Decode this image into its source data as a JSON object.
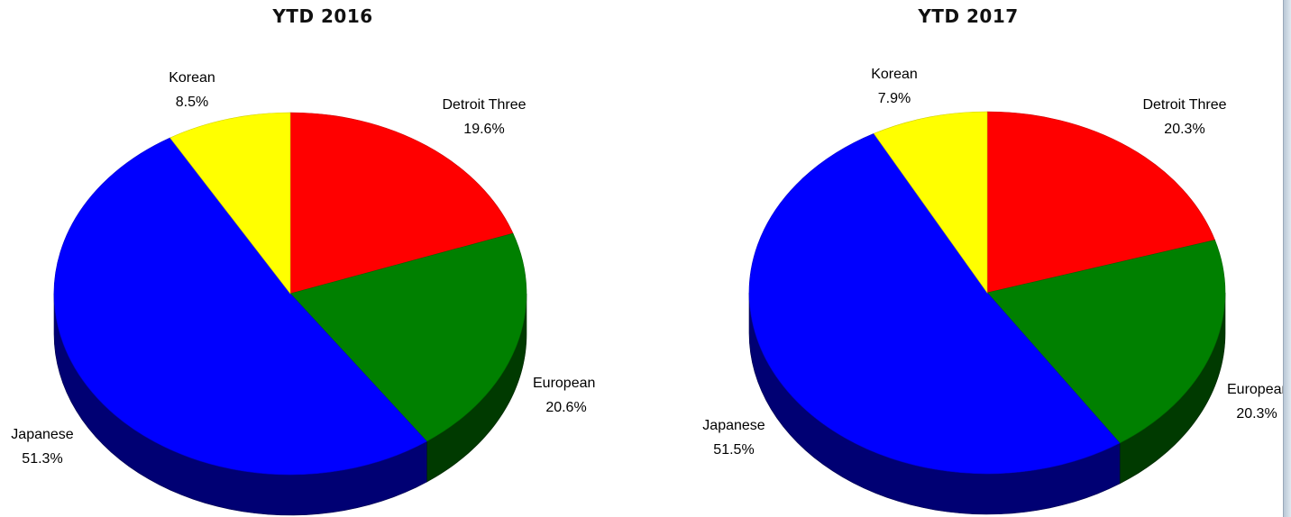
{
  "chart_data": [
    {
      "type": "pie",
      "title": "YTD 2016",
      "slices": [
        {
          "label": "Detroit Three",
          "value": 19.6,
          "display": "19.6%",
          "color": "#ff0000"
        },
        {
          "label": "European",
          "value": 20.6,
          "display": "20.6%",
          "color": "#008000"
        },
        {
          "label": "Japanese",
          "value": 51.3,
          "display": "51.3%",
          "color": "#0000ff"
        },
        {
          "label": "Korean",
          "value": 8.5,
          "display": "8.5%",
          "color": "#ffff00"
        }
      ]
    },
    {
      "type": "pie",
      "title": "YTD 2017",
      "slices": [
        {
          "label": "Detroit Three",
          "value": 20.3,
          "display": "20.3%",
          "color": "#ff0000"
        },
        {
          "label": "European",
          "value": 20.3,
          "display": "20.3%",
          "color": "#008000"
        },
        {
          "label": "Japanese",
          "value": 51.5,
          "display": "51.5%",
          "color": "#0000ff"
        },
        {
          "label": "Korean",
          "value": 7.9,
          "display": "7.9%",
          "color": "#ffff00"
        }
      ]
    }
  ]
}
